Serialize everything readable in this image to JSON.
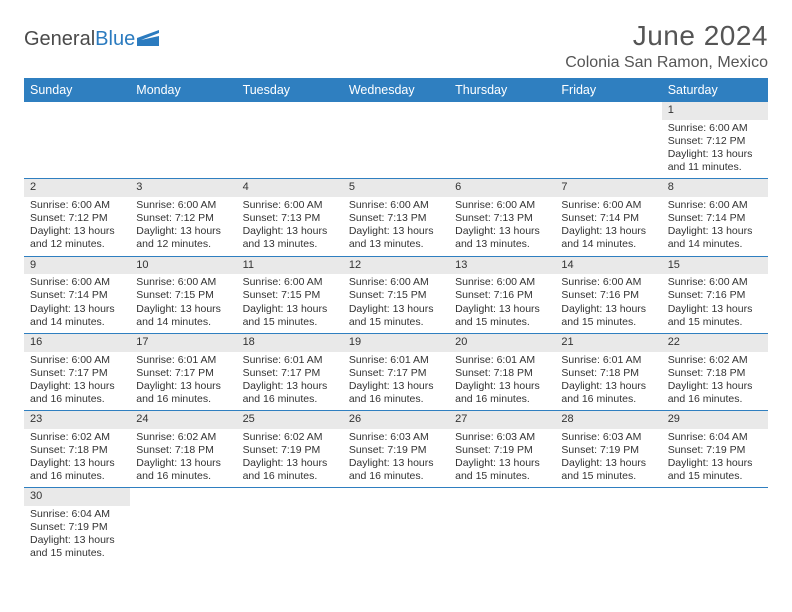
{
  "brand": {
    "part1": "General",
    "part2": "Blue"
  },
  "title": "June 2024",
  "location": "Colonia San Ramon, Mexico",
  "colors": {
    "header_bg": "#2f7fc0",
    "header_text": "#ffffff",
    "daynum_bg": "#e9e9e9",
    "cell_border": "#2f7fc0",
    "body_text": "#333333",
    "title_text": "#555555",
    "logo_blue": "#2b7bbf",
    "logo_gray": "#4a4a4a",
    "page_bg": "#ffffff"
  },
  "weekdays": [
    "Sunday",
    "Monday",
    "Tuesday",
    "Wednesday",
    "Thursday",
    "Friday",
    "Saturday"
  ],
  "labels": {
    "sunrise": "Sunrise:",
    "sunset": "Sunset:",
    "daylight": "Daylight:",
    "hours_word": "hours",
    "and_word": "and",
    "minutes_word": "minutes."
  },
  "weeks": [
    [
      null,
      null,
      null,
      null,
      null,
      null,
      {
        "n": "1",
        "rise": "6:00 AM",
        "set": "7:12 PM",
        "dh": "13",
        "dm": "11"
      }
    ],
    [
      {
        "n": "2",
        "rise": "6:00 AM",
        "set": "7:12 PM",
        "dh": "13",
        "dm": "12"
      },
      {
        "n": "3",
        "rise": "6:00 AM",
        "set": "7:12 PM",
        "dh": "13",
        "dm": "12"
      },
      {
        "n": "4",
        "rise": "6:00 AM",
        "set": "7:13 PM",
        "dh": "13",
        "dm": "13"
      },
      {
        "n": "5",
        "rise": "6:00 AM",
        "set": "7:13 PM",
        "dh": "13",
        "dm": "13"
      },
      {
        "n": "6",
        "rise": "6:00 AM",
        "set": "7:13 PM",
        "dh": "13",
        "dm": "13"
      },
      {
        "n": "7",
        "rise": "6:00 AM",
        "set": "7:14 PM",
        "dh": "13",
        "dm": "14"
      },
      {
        "n": "8",
        "rise": "6:00 AM",
        "set": "7:14 PM",
        "dh": "13",
        "dm": "14"
      }
    ],
    [
      {
        "n": "9",
        "rise": "6:00 AM",
        "set": "7:14 PM",
        "dh": "13",
        "dm": "14"
      },
      {
        "n": "10",
        "rise": "6:00 AM",
        "set": "7:15 PM",
        "dh": "13",
        "dm": "14"
      },
      {
        "n": "11",
        "rise": "6:00 AM",
        "set": "7:15 PM",
        "dh": "13",
        "dm": "15"
      },
      {
        "n": "12",
        "rise": "6:00 AM",
        "set": "7:15 PM",
        "dh": "13",
        "dm": "15"
      },
      {
        "n": "13",
        "rise": "6:00 AM",
        "set": "7:16 PM",
        "dh": "13",
        "dm": "15"
      },
      {
        "n": "14",
        "rise": "6:00 AM",
        "set": "7:16 PM",
        "dh": "13",
        "dm": "15"
      },
      {
        "n": "15",
        "rise": "6:00 AM",
        "set": "7:16 PM",
        "dh": "13",
        "dm": "15"
      }
    ],
    [
      {
        "n": "16",
        "rise": "6:00 AM",
        "set": "7:17 PM",
        "dh": "13",
        "dm": "16"
      },
      {
        "n": "17",
        "rise": "6:01 AM",
        "set": "7:17 PM",
        "dh": "13",
        "dm": "16"
      },
      {
        "n": "18",
        "rise": "6:01 AM",
        "set": "7:17 PM",
        "dh": "13",
        "dm": "16"
      },
      {
        "n": "19",
        "rise": "6:01 AM",
        "set": "7:17 PM",
        "dh": "13",
        "dm": "16"
      },
      {
        "n": "20",
        "rise": "6:01 AM",
        "set": "7:18 PM",
        "dh": "13",
        "dm": "16"
      },
      {
        "n": "21",
        "rise": "6:01 AM",
        "set": "7:18 PM",
        "dh": "13",
        "dm": "16"
      },
      {
        "n": "22",
        "rise": "6:02 AM",
        "set": "7:18 PM",
        "dh": "13",
        "dm": "16"
      }
    ],
    [
      {
        "n": "23",
        "rise": "6:02 AM",
        "set": "7:18 PM",
        "dh": "13",
        "dm": "16"
      },
      {
        "n": "24",
        "rise": "6:02 AM",
        "set": "7:18 PM",
        "dh": "13",
        "dm": "16"
      },
      {
        "n": "25",
        "rise": "6:02 AM",
        "set": "7:19 PM",
        "dh": "13",
        "dm": "16"
      },
      {
        "n": "26",
        "rise": "6:03 AM",
        "set": "7:19 PM",
        "dh": "13",
        "dm": "16"
      },
      {
        "n": "27",
        "rise": "6:03 AM",
        "set": "7:19 PM",
        "dh": "13",
        "dm": "15"
      },
      {
        "n": "28",
        "rise": "6:03 AM",
        "set": "7:19 PM",
        "dh": "13",
        "dm": "15"
      },
      {
        "n": "29",
        "rise": "6:04 AM",
        "set": "7:19 PM",
        "dh": "13",
        "dm": "15"
      }
    ],
    [
      {
        "n": "30",
        "rise": "6:04 AM",
        "set": "7:19 PM",
        "dh": "13",
        "dm": "15"
      },
      null,
      null,
      null,
      null,
      null,
      null
    ]
  ]
}
